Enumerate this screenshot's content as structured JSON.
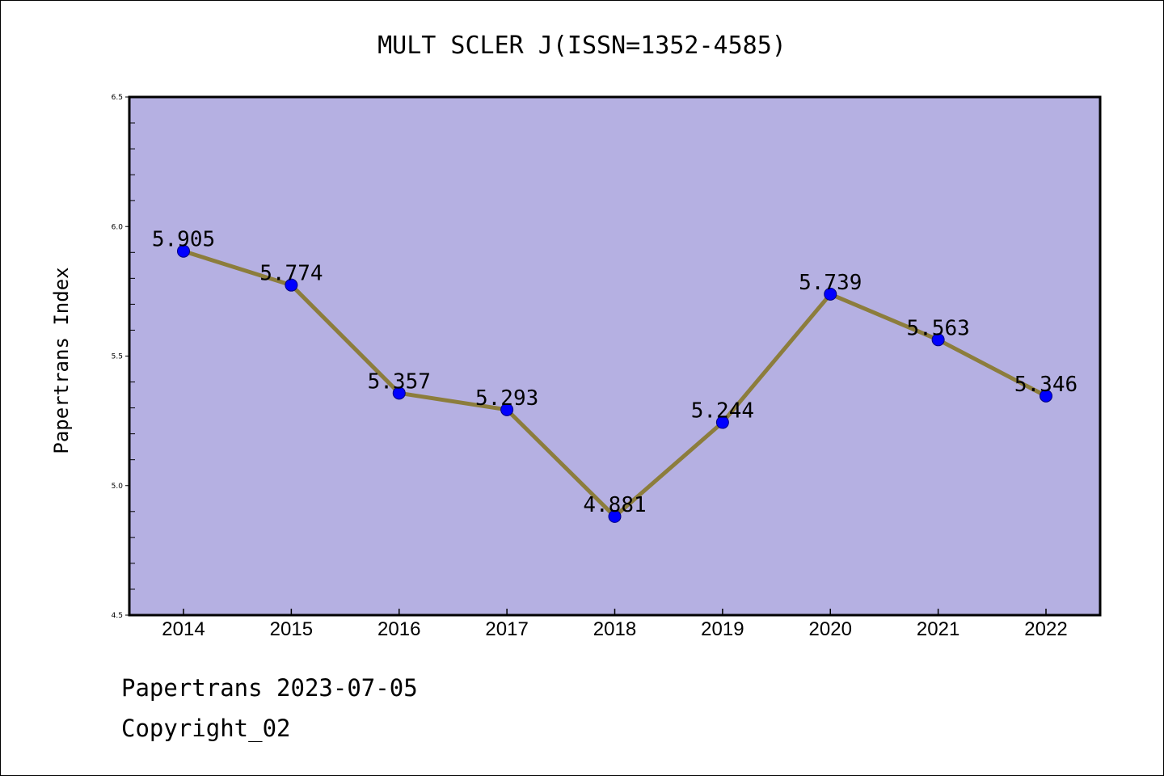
{
  "chart_data": {
    "type": "line",
    "title": "MULT SCLER J(ISSN=1352-4585)",
    "xlabel": "",
    "ylabel": "Papertrans Index",
    "categories": [
      "2014",
      "2015",
      "2016",
      "2017",
      "2018",
      "2019",
      "2020",
      "2021",
      "2022"
    ],
    "values": [
      5.905,
      5.774,
      5.357,
      5.293,
      4.881,
      5.244,
      5.739,
      5.563,
      5.346
    ],
    "data_labels": [
      "5.905",
      "5.774",
      "5.357",
      "5.293",
      "4.881",
      "5.244",
      "5.739",
      "5.563",
      "5.346"
    ],
    "ylim": [
      4.5,
      6.5
    ],
    "yticks": [
      "4.5",
      "5.0",
      "5.5",
      "6.0",
      "6.5"
    ],
    "grid": false,
    "colors": {
      "plot_background": "#b5b0e2",
      "line": "#8c7d3c",
      "marker_fill": "#0000ff",
      "marker_edge": "#000080"
    }
  },
  "footer": {
    "line1": "Papertrans 2023-07-05",
    "line2": "Copyright_02"
  }
}
